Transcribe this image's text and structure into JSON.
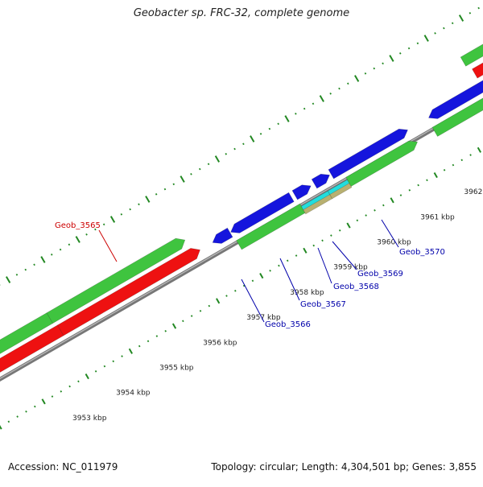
{
  "title": "Geobacter sp. FRC-32, complete genome",
  "footer": {
    "accession": "Accession: NC_011979",
    "stats": "Topology: circular; Length: 4,304,501 bp; Genes: 3,855"
  },
  "colors": {
    "backbone": "#777777",
    "forward_cds": "#3fc43f",
    "reverse_cds": "#ee1111",
    "blue_gene": "#1515dd",
    "cyan_gene": "#22dddd",
    "tan_gene": "#b8b070",
    "tick": "#228822",
    "red_label": "#cc0000",
    "blue_label": "#0000aa"
  },
  "scale": {
    "ticks": [
      {
        "label": "3953 kbp"
      },
      {
        "label": "3954 kbp"
      },
      {
        "label": "3955 kbp"
      },
      {
        "label": "3956 kbp"
      },
      {
        "label": "3957 kbp"
      },
      {
        "label": "3958 kbp"
      },
      {
        "label": "3959 kbp"
      },
      {
        "label": "3960 kbp"
      },
      {
        "label": "3961 kbp"
      },
      {
        "label": "3962 kbp"
      }
    ]
  },
  "gene_labels": {
    "geob_3565": "Geob_3565",
    "geob_3566": "Geob_3566",
    "geob_3567": "Geob_3567",
    "geob_3568": "Geob_3568",
    "geob_3569": "Geob_3569",
    "geob_3570": "Geob_3570"
  }
}
